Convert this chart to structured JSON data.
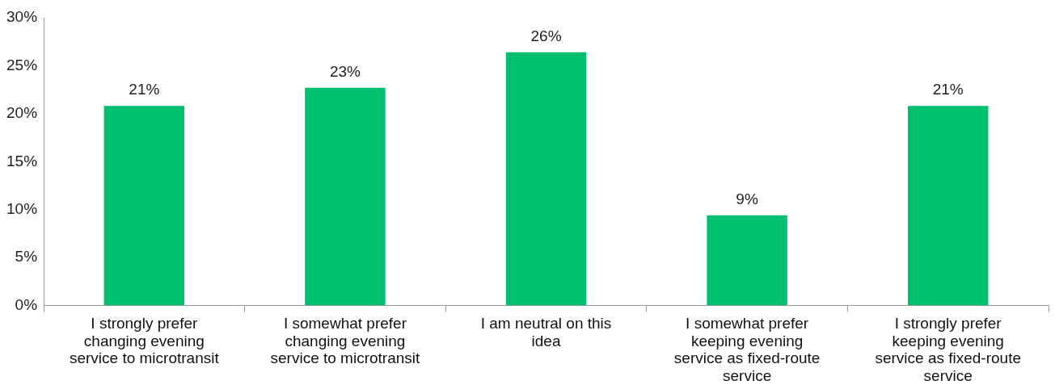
{
  "chart_data": {
    "type": "bar",
    "categories": [
      "I strongly prefer changing evening service to microtransit",
      "I somewhat prefer changing evening service to microtransit",
      "I am neutral on this idea",
      "I somewhat prefer keeping evening service as fixed-route service",
      "I strongly prefer keeping evening service as fixed-route service"
    ],
    "values": [
      20.8,
      22.7,
      26.4,
      9.4,
      20.8
    ],
    "value_labels": [
      "21%",
      "23%",
      "26%",
      "9%",
      "21%"
    ],
    "color": "#00bf6f",
    "ylim": [
      0,
      30
    ],
    "yticks": [
      {
        "value": 0,
        "label": "0%"
      },
      {
        "value": 5,
        "label": "5%"
      },
      {
        "value": 10,
        "label": "10%"
      },
      {
        "value": 15,
        "label": "15%"
      },
      {
        "value": 20,
        "label": "20%"
      },
      {
        "value": 25,
        "label": "25%"
      },
      {
        "value": 30,
        "label": "30%"
      }
    ],
    "grid": false,
    "legend": false
  }
}
